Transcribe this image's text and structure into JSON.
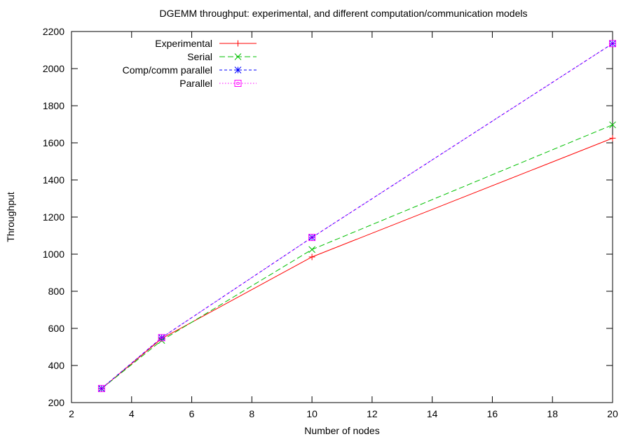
{
  "chart_data": {
    "type": "line",
    "title": "DGEMM throughput: experimental, and different computation/communication models",
    "xlabel": "Number of nodes",
    "ylabel": "Throughput",
    "xlim": [
      2,
      20
    ],
    "ylim": [
      200,
      2200
    ],
    "xticks": [
      2,
      4,
      6,
      8,
      10,
      12,
      14,
      16,
      18,
      20
    ],
    "yticks": [
      200,
      400,
      600,
      800,
      1000,
      1200,
      1400,
      1600,
      1800,
      2000,
      2200
    ],
    "grid": false,
    "legend_position": "top-left",
    "series": [
      {
        "name": "Experimental",
        "color": "#ff0000",
        "dash": "solid",
        "marker": "plus",
        "x": [
          3,
          5,
          10,
          20
        ],
        "y": [
          275,
          545,
          985,
          1625
        ]
      },
      {
        "name": "Serial",
        "color": "#00c000",
        "dash": "dashed",
        "marker": "cross",
        "x": [
          3,
          5,
          10,
          20
        ],
        "y": [
          275,
          535,
          1025,
          1697
        ]
      },
      {
        "name": "Comp/comm parallel",
        "color": "#0000ff",
        "dash": "short-dashed",
        "marker": "star",
        "x": [
          3,
          5,
          10,
          20
        ],
        "y": [
          276,
          550,
          1090,
          2135
        ]
      },
      {
        "name": "Parallel",
        "color": "#ff00ff",
        "dash": "dotted",
        "marker": "square",
        "x": [
          3,
          5,
          10,
          20
        ],
        "y": [
          276,
          550,
          1090,
          2135
        ]
      }
    ]
  }
}
